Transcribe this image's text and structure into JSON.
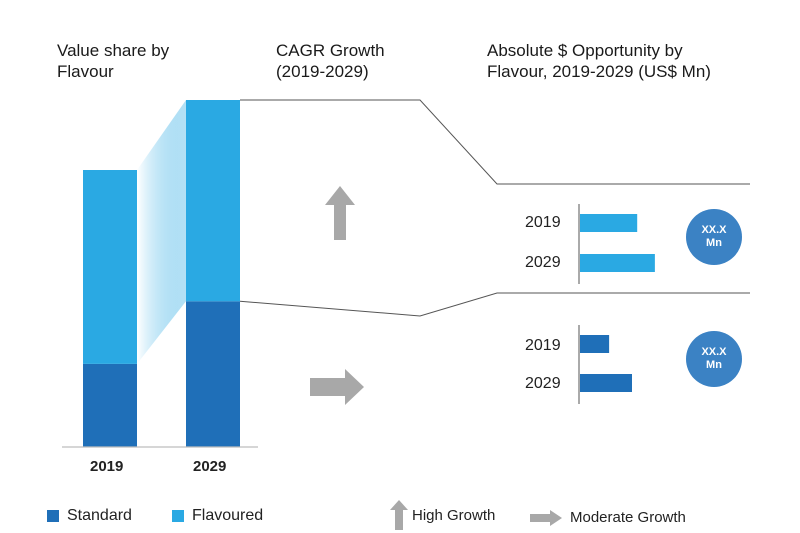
{
  "headers": {
    "value_share": [
      "Value share by",
      "Flavour"
    ],
    "cagr": [
      "CAGR Growth",
      "(2019-2029)"
    ],
    "absolute": [
      "Absolute $ Opportunity by",
      "Flavour, 2019-2029 (US$ Mn)"
    ]
  },
  "colors": {
    "standard": "#1f6fb8",
    "flavoured": "#2aa9e3",
    "arrow": "#a8a8a8",
    "bubble": "#3b82c4"
  },
  "chart_data": [
    {
      "type": "bar",
      "title": "Value share by Flavour",
      "stacked": true,
      "categories": [
        "2019",
        "2029"
      ],
      "series": [
        {
          "name": "Standard",
          "values": [
            30,
            42
          ]
        },
        {
          "name": "Flavoured",
          "values": [
            70,
            58
          ]
        }
      ],
      "ylim": [
        0,
        100
      ]
    },
    {
      "type": "bar",
      "orientation": "horizontal",
      "title": "Absolute $ Opportunity by Flavour, 2019-2029 (US$ Mn)",
      "panels": [
        {
          "segment": "Flavoured",
          "growth": "High Growth",
          "categories": [
            "2019",
            "2029"
          ],
          "values": [
            55,
            72
          ],
          "bubble": [
            "XX.X",
            "Mn"
          ]
        },
        {
          "segment": "Standard",
          "growth": "Moderate Growth",
          "categories": [
            "2019",
            "2029"
          ],
          "values": [
            28,
            50
          ],
          "bubble": [
            "XX.X",
            "Mn"
          ]
        }
      ],
      "xlim": [
        0,
        100
      ]
    }
  ],
  "legend": {
    "standard": "Standard",
    "flavoured": "Flavoured",
    "high_growth": "High Growth",
    "moderate_growth": "Moderate Growth"
  }
}
